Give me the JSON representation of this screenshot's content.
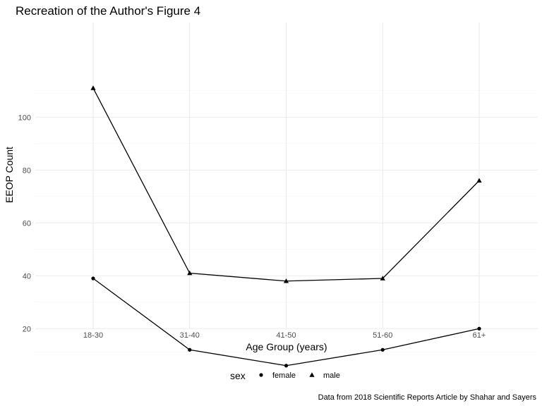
{
  "chart_data": {
    "type": "line",
    "title": "Recreation of the Author's Figure 4",
    "xlabel": "Age Group (years)",
    "ylabel": "EEOP Count",
    "caption": "Data from 2018 Scientific Reports Article by Shahar and Sayers",
    "categories": [
      "18-30",
      "31-40",
      "41-50",
      "51-60",
      "61+"
    ],
    "y_ticks": [
      20,
      40,
      60,
      80,
      100
    ],
    "y_minor_ticks": [
      10,
      30,
      50,
      70,
      90,
      110
    ],
    "ylim": [
      0,
      115
    ],
    "grid": true,
    "legend": {
      "title": "sex",
      "position": "bottom",
      "entries": [
        {
          "label": "female",
          "shape": "circle"
        },
        {
          "label": "male",
          "shape": "triangle"
        }
      ]
    },
    "series": [
      {
        "name": "female",
        "shape": "circle",
        "values": [
          39,
          12,
          6,
          12,
          20
        ]
      },
      {
        "name": "male",
        "shape": "triangle",
        "values": [
          111,
          41,
          38,
          39,
          76
        ]
      }
    ]
  }
}
